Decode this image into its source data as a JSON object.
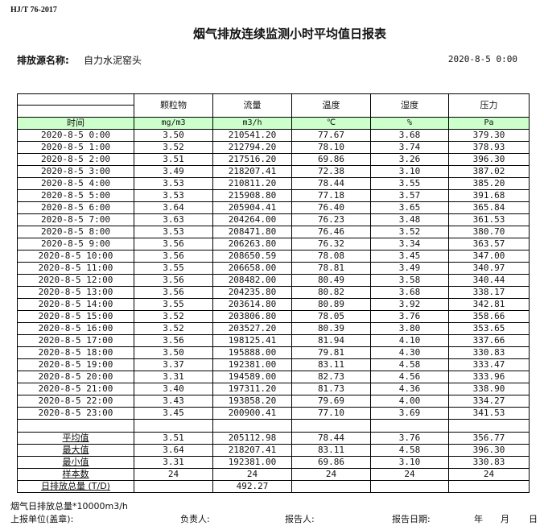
{
  "standard": "HJ/T  76-2017",
  "title": "烟气排放连续监测小时平均值日报表",
  "source_label": "排放源名称:",
  "source_name": "自力水泥窑头",
  "report_datetime": "2020-8-5 0:00",
  "columns": [
    "颗粒物",
    "流量",
    "温度",
    "湿度",
    "压力"
  ],
  "units": {
    "time_label": "时间",
    "values": [
      "mg/m3",
      "m3/h",
      "℃",
      "%",
      "Pa"
    ]
  },
  "rows": [
    [
      "2020-8-5 0:00",
      "3.50",
      "210541.20",
      "77.67",
      "3.68",
      "379.30"
    ],
    [
      "2020-8-5 1:00",
      "3.52",
      "212794.20",
      "78.10",
      "3.74",
      "378.93"
    ],
    [
      "2020-8-5 2:00",
      "3.51",
      "217516.20",
      "69.86",
      "3.26",
      "396.30"
    ],
    [
      "2020-8-5 3:00",
      "3.49",
      "218207.41",
      "72.38",
      "3.10",
      "387.02"
    ],
    [
      "2020-8-5 4:00",
      "3.53",
      "210811.20",
      "78.44",
      "3.55",
      "385.20"
    ],
    [
      "2020-8-5 5:00",
      "3.53",
      "215908.80",
      "77.18",
      "3.57",
      "391.68"
    ],
    [
      "2020-8-5 6:00",
      "3.64",
      "205904.41",
      "76.40",
      "3.65",
      "365.84"
    ],
    [
      "2020-8-5 7:00",
      "3.63",
      "204264.00",
      "76.23",
      "3.48",
      "361.53"
    ],
    [
      "2020-8-5 8:00",
      "3.53",
      "208471.80",
      "76.46",
      "3.52",
      "380.70"
    ],
    [
      "2020-8-5 9:00",
      "3.56",
      "206263.80",
      "76.32",
      "3.34",
      "363.57"
    ],
    [
      "2020-8-5 10:00",
      "3.56",
      "208650.59",
      "78.08",
      "3.45",
      "347.00"
    ],
    [
      "2020-8-5 11:00",
      "3.55",
      "206658.00",
      "78.81",
      "3.49",
      "340.97"
    ],
    [
      "2020-8-5 12:00",
      "3.56",
      "208482.00",
      "80.49",
      "3.58",
      "340.44"
    ],
    [
      "2020-8-5 13:00",
      "3.56",
      "204235.80",
      "80.82",
      "3.68",
      "338.17"
    ],
    [
      "2020-8-5 14:00",
      "3.55",
      "203614.80",
      "80.89",
      "3.92",
      "342.81"
    ],
    [
      "2020-8-5 15:00",
      "3.52",
      "203806.80",
      "78.05",
      "3.76",
      "358.66"
    ],
    [
      "2020-8-5 16:00",
      "3.52",
      "203527.20",
      "80.39",
      "3.80",
      "353.65"
    ],
    [
      "2020-8-5 17:00",
      "3.56",
      "198125.41",
      "81.94",
      "4.10",
      "337.66"
    ],
    [
      "2020-8-5 18:00",
      "3.50",
      "195888.00",
      "79.81",
      "4.30",
      "330.83"
    ],
    [
      "2020-8-5 19:00",
      "3.37",
      "192381.00",
      "83.11",
      "4.58",
      "333.47"
    ],
    [
      "2020-8-5 20:00",
      "3.31",
      "194589.00",
      "82.73",
      "4.56",
      "333.96"
    ],
    [
      "2020-8-5 21:00",
      "3.40",
      "197311.20",
      "81.73",
      "4.36",
      "338.90"
    ],
    [
      "2020-8-5 22:00",
      "3.43",
      "193858.20",
      "79.69",
      "4.00",
      "334.27"
    ],
    [
      "2020-8-5 23:00",
      "3.45",
      "200900.41",
      "77.10",
      "3.69",
      "341.53"
    ]
  ],
  "stats": [
    [
      "平均值",
      "3.51",
      "205112.98",
      "78.44",
      "3.76",
      "356.77"
    ],
    [
      "最大值",
      "3.64",
      "218207.41",
      "83.11",
      "4.58",
      "396.30"
    ],
    [
      "最小值",
      "3.31",
      "192381.00",
      "69.86",
      "3.10",
      "330.83"
    ],
    [
      "样本数",
      "24",
      "24",
      "24",
      "24",
      "24"
    ]
  ],
  "daily_total": {
    "label": "日排放总量 (T/D)",
    "value": "492.27"
  },
  "footer": {
    "note": "烟气日排放总量*10000m3/h",
    "unit_label": "上报单位(盖章):",
    "responsible_label": "负责人:",
    "reporter_label": "报告人:",
    "date_label": "报告日期:",
    "year": "年",
    "month": "月",
    "day": "日"
  }
}
